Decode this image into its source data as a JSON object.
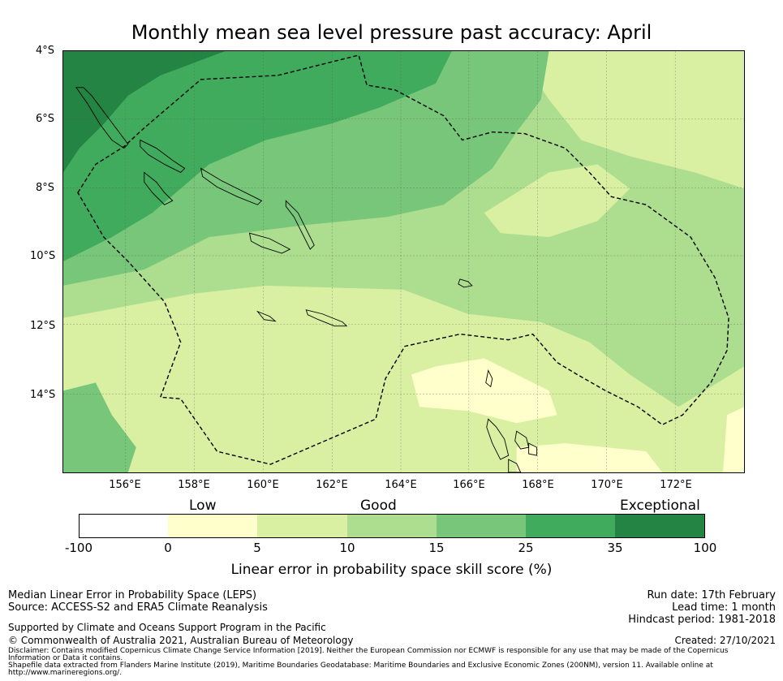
{
  "title": "Monthly mean sea level pressure past accuracy: April",
  "map": {
    "lat_labels": [
      "4°S",
      "6°S",
      "8°S",
      "10°S",
      "12°S",
      "14°S"
    ],
    "lon_labels": [
      "156°E",
      "158°E",
      "160°E",
      "162°E",
      "164°E",
      "166°E",
      "168°E",
      "170°E",
      "172°E"
    ],
    "colors": {
      "exceptional": "#238443",
      "very_good": "#41ab5d",
      "good_high": "#78c679",
      "good_mid": "#addd8e",
      "good_low": "#d9f0a3",
      "low": "#ffffcc",
      "zero": "#ffffff",
      "boundary": "#000000"
    }
  },
  "colorbar": {
    "categories": [
      "Low",
      "Good",
      "Exceptional"
    ],
    "ticks": [
      "-100",
      "0",
      "5",
      "10",
      "15",
      "25",
      "35",
      "100"
    ],
    "label": "Linear error in probability space skill score (%)"
  },
  "footer": {
    "left_line1": "Median Linear Error in Probability Space (LEPS)",
    "left_line2": "Source: ACCESS-S2 and ERA5 Climate Reanalysis",
    "support": "Supported by Climate and Oceans Support Program in the Pacific",
    "copyright": "© Commonwealth of Australia 2021, Australian Bureau of Meteorology",
    "run_date": "Run date: 17th February",
    "lead_time": "Lead time: 1 month",
    "hindcast": "Hindcast period: 1981-2018",
    "created": "Created: 27/10/2021",
    "disclaimer1": "Disclaimer: Contains modified Copernicus Climate Change Service Information [2019]. Neither the European Commission nor ECMWF is responsible for any use that may be made of the Copernicus",
    "disclaimer2": "Information or Data it contains.",
    "disclaimer3": "Shapefile data extracted from Flanders Marine Institute (2019), Maritime Boundaries Geodatabase: Maritime Boundaries and Exclusive Economic Zones (200NM), version 11. Available online at",
    "disclaimer4": "http://www.marineregions.org/."
  }
}
